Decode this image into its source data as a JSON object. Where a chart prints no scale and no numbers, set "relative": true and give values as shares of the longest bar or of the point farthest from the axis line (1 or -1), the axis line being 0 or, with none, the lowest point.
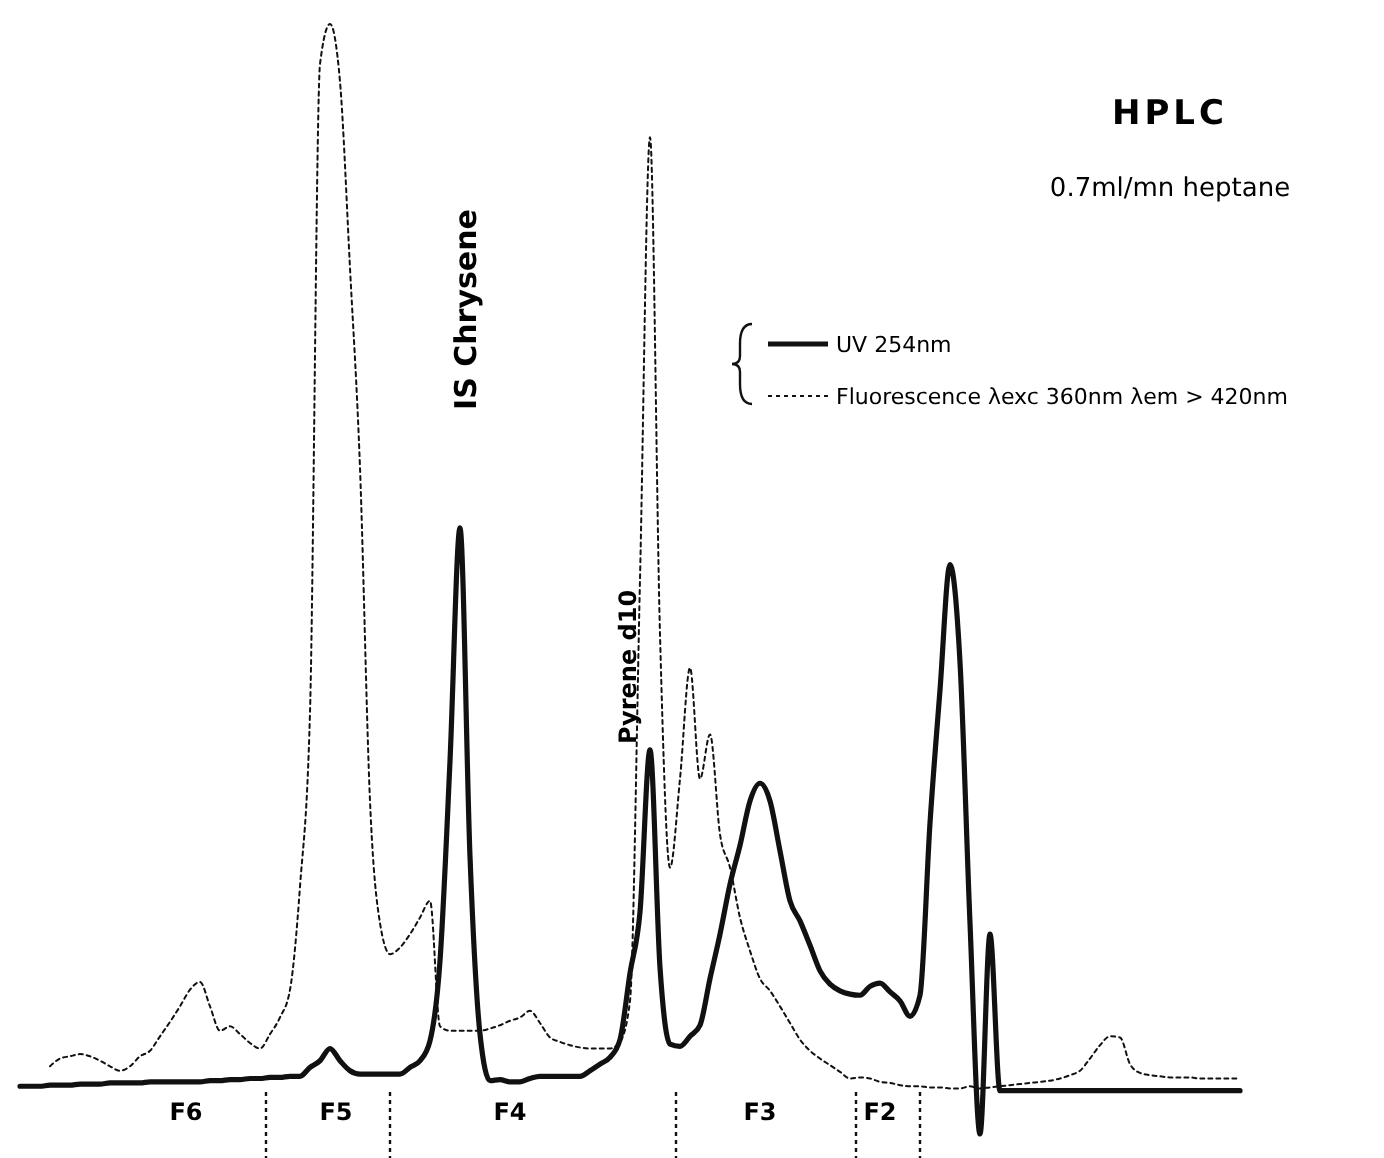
{
  "chart_data": {
    "type": "line",
    "relative": true,
    "title": "HPLC",
    "subtitle": "0.7ml/mn heptane",
    "legend": "top right",
    "grid": false,
    "categories": [
      null,
      null,
      null,
      null,
      null,
      null,
      null,
      null,
      null,
      null,
      null,
      null,
      null,
      null,
      null,
      null,
      null,
      null,
      null,
      null,
      null,
      null,
      null,
      null,
      null,
      null,
      null,
      null,
      null,
      null,
      null,
      null,
      null,
      null,
      null,
      null,
      null,
      null,
      null,
      null,
      null,
      null,
      null,
      null,
      null,
      null,
      null,
      null,
      null,
      null,
      null,
      null,
      null,
      null,
      null,
      null,
      null,
      null,
      null,
      null,
      null,
      null,
      null,
      null,
      null,
      null,
      null,
      null,
      null,
      null,
      null,
      null,
      null,
      null,
      null,
      null,
      null,
      null,
      null,
      null,
      null,
      null,
      null,
      null,
      null,
      null,
      null,
      null,
      null,
      null,
      null,
      null,
      null,
      null,
      null,
      null,
      null,
      null,
      null,
      null,
      null,
      null,
      null,
      null,
      null,
      null,
      null,
      null,
      null,
      null,
      null,
      null,
      null,
      null,
      null,
      null,
      null,
      null,
      null,
      null,
      null,
      null,
      null
    ],
    "series": [
      {
        "name": "UV 254nm",
        "color": "#111111",
        "line_style": "solid",
        "values": [
          0.043,
          0.043,
          0.043,
          0.044,
          0.044,
          0.044,
          0.045,
          0.045,
          0.045,
          0.046,
          0.046,
          0.046,
          0.046,
          0.047,
          0.047,
          0.047,
          0.047,
          0.047,
          0.047,
          0.048,
          0.048,
          0.049,
          0.049,
          0.05,
          0.05,
          0.051,
          0.051,
          0.052,
          0.052,
          0.06,
          0.066,
          0.077,
          0.066,
          0.057,
          0.054,
          0.054,
          0.054,
          0.054,
          0.054,
          0.06,
          0.066,
          0.084,
          0.156,
          0.336,
          0.546,
          0.25,
          0.09,
          0.048,
          0.049,
          0.047,
          0.047,
          0.05,
          0.052,
          0.052,
          0.052,
          0.052,
          0.052,
          0.057,
          0.063,
          0.069,
          0.085,
          0.145,
          0.2,
          0.346,
          0.15,
          0.081,
          0.079,
          0.088,
          0.098,
          0.14,
          0.18,
          0.225,
          0.26,
          0.3,
          0.316,
          0.3,
          0.255,
          0.21,
          0.192,
          0.17,
          0.147,
          0.135,
          0.129,
          0.126,
          0.125,
          0.133,
          0.136,
          0.128,
          0.12,
          0.106,
          0.125,
          0.28,
          0.4,
          0.513,
          0.425,
          0.19,
          0,
          0.18,
          0.039,
          0.039,
          0.039,
          0.039,
          0.039,
          0.039,
          0.039,
          0.039,
          0.039,
          0.039,
          0.039,
          0.039,
          0.039,
          0.039,
          0.039,
          0.039,
          0.039,
          0.039,
          0.039,
          0.039,
          0.039,
          0.039,
          0.039,
          0.039,
          0.039
        ]
      },
      {
        "name": "Fluorescence λexc 360nm λem > 420nm",
        "color": "#111111",
        "line_style": "dotted",
        "values": [
          null,
          null,
          null,
          0.061,
          0.068,
          0.07,
          0.072,
          0.07,
          0.066,
          0.061,
          0.057,
          0.061,
          0.07,
          0.075,
          0.088,
          0.101,
          0.115,
          0.13,
          0.137,
          0.115,
          0.093,
          0.097,
          0.09,
          0.082,
          0.077,
          0.09,
          0.105,
          0.13,
          0.223,
          0.38,
          0.964,
          1.0,
          0.948,
          0.78,
          0.6,
          0.3,
          0.19,
          0.162,
          0.168,
          0.18,
          0.195,
          0.21,
          0.097,
          0.093,
          0.093,
          0.093,
          0.093,
          0.095,
          0.098,
          0.102,
          0.105,
          0.111,
          0.1,
          0.087,
          0.083,
          0.08,
          0.078,
          0.077,
          0.077,
          0.077,
          0.083,
          0.12,
          0.5,
          0.898,
          0.45,
          0.24,
          0.32,
          0.42,
          0.32,
          0.36,
          0.27,
          0.24,
          0.195,
          0.165,
          0.14,
          0.129,
          0.115,
          0.1,
          0.085,
          0.075,
          0.068,
          0.062,
          0.056,
          0.05,
          0.051,
          0.05,
          0.047,
          0.046,
          0.044,
          0.043,
          0.043,
          0.042,
          0.042,
          0.041,
          0.041,
          0.043,
          0.041,
          0.042,
          0.043,
          0.044,
          0.045,
          0.046,
          0.047,
          0.048,
          0.05,
          0.053,
          0.057,
          0.068,
          0.08,
          0.088,
          0.087,
          0.063,
          0.055,
          0.053,
          0.052,
          0.051,
          0.051,
          0.051,
          0.05,
          0.05,
          0.05,
          0.05,
          0.05
        ]
      }
    ],
    "annotations": [
      "IS Chrysene",
      "Pyrene d10",
      "F6",
      "F5",
      "F4",
      "F3",
      "F2"
    ]
  }
}
